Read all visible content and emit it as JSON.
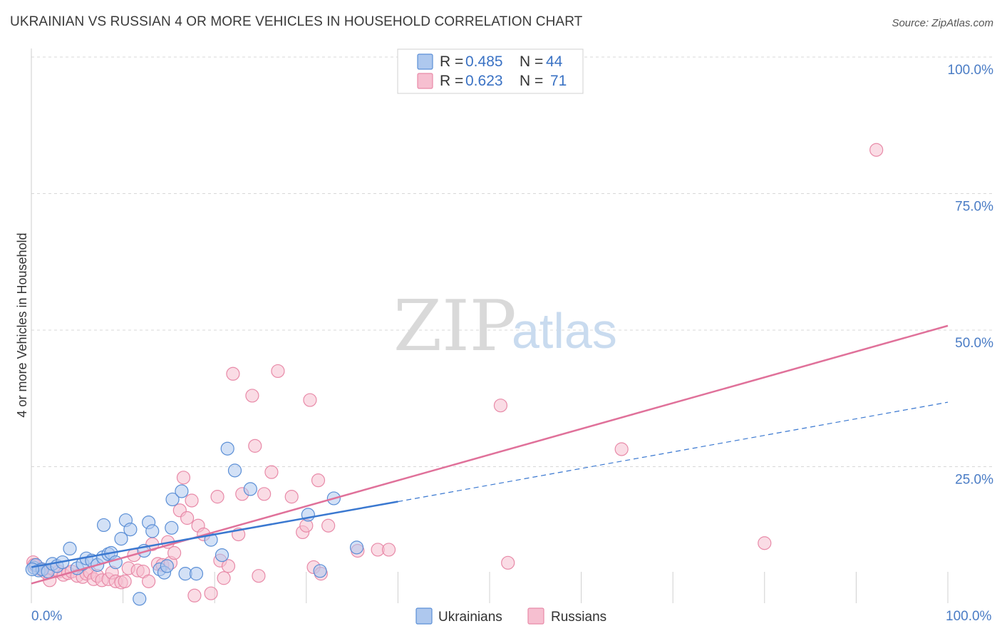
{
  "title": "UKRAINIAN VS RUSSIAN 4 OR MORE VEHICLES IN HOUSEHOLD CORRELATION CHART",
  "source": "Source: ZipAtlas.com",
  "watermark": {
    "zip": "ZIP",
    "atlas": "atlas"
  },
  "colors": {
    "ukrainians_fill": "#aec8ee",
    "ukrainians_stroke": "#5b8fd6",
    "ukrainians_line": "#3a78d0",
    "russians_fill": "#f6bfd0",
    "russians_stroke": "#e88aa8",
    "russians_line": "#e0719a",
    "grid": "#d8d8d8",
    "tick_text": "#4a7cc5"
  },
  "legend": {
    "rows": [
      {
        "r_label": "R =",
        "r_value": "0.485",
        "n_label": "N =",
        "n_value": "44"
      },
      {
        "r_label": "R =",
        "r_value": "0.623",
        "n_label": "N =",
        "n_value": "71"
      }
    ]
  },
  "chart_data": {
    "type": "scatter",
    "title": "UKRAINIAN VS RUSSIAN 4 OR MORE VEHICLES IN HOUSEHOLD CORRELATION CHART",
    "xlabel": "",
    "ylabel": "4 or more Vehicles in Household",
    "xlim": [
      0,
      100
    ],
    "ylim": [
      0,
      100
    ],
    "x_tick_labels": [
      "0.0%",
      "100.0%"
    ],
    "y_tick_labels": [
      "100.0%",
      "75.0%",
      "50.0%",
      "25.0%"
    ],
    "y_tick_values": [
      100,
      75,
      50,
      25
    ],
    "grid": true,
    "legend_position": "top-center",
    "series": [
      {
        "name": "Ukrainians",
        "r": 0.485,
        "n": 44,
        "trend": {
          "x0": 0,
          "y0": 6.6,
          "x1": 40,
          "y1": 18.6,
          "dashed_to": 100,
          "dashed_y1": 36.8
        },
        "points": [
          [
            0.3,
            6.5
          ],
          [
            0.5,
            7.0
          ],
          [
            0.8,
            6.0
          ],
          [
            1.2,
            6.2
          ],
          [
            1.8,
            5.8
          ],
          [
            2.3,
            7.2
          ],
          [
            2.8,
            6.8
          ],
          [
            3.4,
            7.5
          ],
          [
            4.2,
            10.0
          ],
          [
            5.0,
            6.4
          ],
          [
            5.6,
            7.2
          ],
          [
            6.0,
            8.2
          ],
          [
            6.6,
            7.8
          ],
          [
            7.2,
            7.0
          ],
          [
            7.8,
            8.4
          ],
          [
            7.9,
            14.3
          ],
          [
            8.4,
            9.0
          ],
          [
            8.7,
            9.2
          ],
          [
            9.2,
            7.5
          ],
          [
            9.8,
            11.8
          ],
          [
            10.3,
            15.2
          ],
          [
            10.8,
            13.5
          ],
          [
            11.8,
            0.8
          ],
          [
            12.3,
            9.6
          ],
          [
            12.8,
            14.8
          ],
          [
            13.2,
            13.2
          ],
          [
            14.0,
            6.2
          ],
          [
            14.5,
            5.6
          ],
          [
            14.8,
            6.8
          ],
          [
            15.3,
            13.8
          ],
          [
            15.4,
            19.0
          ],
          [
            16.4,
            20.5
          ],
          [
            16.8,
            5.4
          ],
          [
            18.0,
            5.4
          ],
          [
            19.6,
            11.6
          ],
          [
            20.8,
            8.8
          ],
          [
            21.4,
            28.3
          ],
          [
            22.2,
            24.3
          ],
          [
            23.9,
            20.9
          ],
          [
            30.2,
            16.2
          ],
          [
            31.5,
            5.9
          ],
          [
            33.0,
            19.2
          ],
          [
            35.5,
            10.2
          ],
          [
            0.1,
            6.2
          ]
        ]
      },
      {
        "name": "Russians",
        "r": 0.623,
        "n": 71,
        "trend": {
          "x0": 0,
          "y0": 3.6,
          "x1": 100,
          "y1": 50.8
        },
        "points": [
          [
            0.2,
            7.5
          ],
          [
            0.6,
            6.8
          ],
          [
            1.0,
            6.2
          ],
          [
            1.6,
            5.6
          ],
          [
            2.0,
            4.2
          ],
          [
            2.4,
            6.2
          ],
          [
            3.0,
            5.8
          ],
          [
            3.5,
            5.2
          ],
          [
            4.0,
            5.5
          ],
          [
            4.4,
            5.8
          ],
          [
            5.0,
            5.0
          ],
          [
            5.6,
            4.8
          ],
          [
            6.0,
            5.4
          ],
          [
            6.4,
            5.6
          ],
          [
            6.8,
            4.4
          ],
          [
            7.2,
            5.0
          ],
          [
            7.7,
            4.2
          ],
          [
            8.4,
            4.4
          ],
          [
            8.8,
            5.6
          ],
          [
            9.2,
            4.0
          ],
          [
            9.8,
            3.8
          ],
          [
            10.2,
            4.0
          ],
          [
            10.6,
            6.4
          ],
          [
            11.2,
            8.8
          ],
          [
            11.6,
            6.0
          ],
          [
            12.2,
            5.8
          ],
          [
            12.8,
            4.0
          ],
          [
            13.2,
            10.8
          ],
          [
            13.8,
            7.2
          ],
          [
            14.3,
            7.0
          ],
          [
            14.9,
            11.2
          ],
          [
            15.2,
            7.4
          ],
          [
            15.6,
            9.2
          ],
          [
            16.2,
            17.0
          ],
          [
            16.6,
            23.0
          ],
          [
            17.0,
            15.6
          ],
          [
            17.5,
            18.8
          ],
          [
            17.8,
            1.4
          ],
          [
            18.2,
            14.2
          ],
          [
            18.8,
            12.6
          ],
          [
            19.6,
            1.8
          ],
          [
            20.3,
            19.5
          ],
          [
            20.6,
            7.8
          ],
          [
            21.0,
            4.6
          ],
          [
            21.5,
            6.8
          ],
          [
            22.0,
            42.0
          ],
          [
            22.6,
            12.6
          ],
          [
            23.0,
            20.0
          ],
          [
            24.1,
            38.0
          ],
          [
            24.4,
            28.8
          ],
          [
            24.8,
            5.0
          ],
          [
            25.4,
            20.0
          ],
          [
            26.2,
            24.0
          ],
          [
            26.9,
            42.5
          ],
          [
            28.4,
            19.5
          ],
          [
            29.6,
            13.0
          ],
          [
            30.0,
            14.2
          ],
          [
            30.4,
            37.2
          ],
          [
            30.8,
            6.6
          ],
          [
            31.3,
            22.5
          ],
          [
            31.6,
            5.4
          ],
          [
            32.4,
            14.2
          ],
          [
            35.6,
            9.6
          ],
          [
            37.8,
            9.8
          ],
          [
            39.0,
            9.8
          ],
          [
            51.2,
            36.2
          ],
          [
            52.0,
            7.4
          ],
          [
            64.4,
            28.2
          ],
          [
            80.0,
            11.0
          ],
          [
            92.2,
            83.0
          ],
          [
            0.3,
            7.0
          ]
        ]
      }
    ]
  },
  "bottom_legend": {
    "items": [
      "Ukrainians",
      "Russians"
    ]
  }
}
